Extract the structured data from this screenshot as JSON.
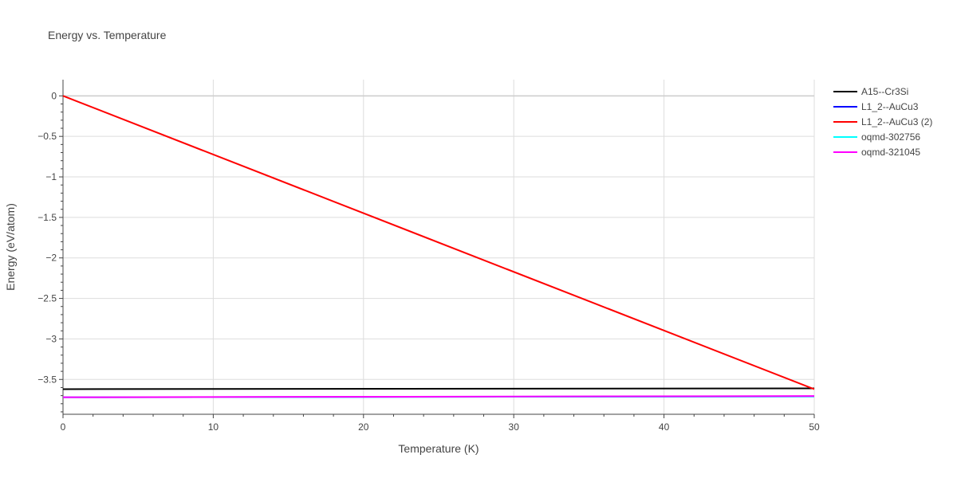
{
  "chart_data": {
    "type": "line",
    "title": "Energy vs. Temperature",
    "xlabel": "Temperature (K)",
    "ylabel": "Energy (eV/atom)",
    "xlim": [
      0,
      50
    ],
    "ylim": [
      -3.93,
      0.2
    ],
    "xticks": [
      0,
      10,
      20,
      30,
      40,
      50
    ],
    "xtick_labels": [
      "0",
      "10",
      "20",
      "30",
      "40",
      "50"
    ],
    "yticks": [
      0,
      -0.5,
      -1,
      -1.5,
      -2,
      -2.5,
      -3,
      -3.5
    ],
    "ytick_labels": [
      "0",
      "−0.5",
      "−1",
      "−1.5",
      "−2",
      "−2.5",
      "−3",
      "−3.5"
    ],
    "grid": true,
    "legend_position": "right",
    "series": [
      {
        "name": "A15--Cr3Si",
        "color": "#000000",
        "x": [
          0,
          50
        ],
        "y": [
          -3.62,
          -3.61
        ]
      },
      {
        "name": "L1_2--AuCu3",
        "color": "#0000ff",
        "x": [
          0,
          50
        ],
        "y": [
          -3.72,
          -3.71
        ]
      },
      {
        "name": "L1_2--AuCu3 (2)",
        "color": "#ff0000",
        "x": [
          0,
          50
        ],
        "y": [
          0,
          -3.62
        ]
      },
      {
        "name": "oqmd-302756",
        "color": "#00ffff",
        "x": [
          0,
          50
        ],
        "y": [
          -3.72,
          -3.71
        ]
      },
      {
        "name": "oqmd-321045",
        "color": "#ff00ff",
        "x": [
          0,
          50
        ],
        "y": [
          -3.72,
          -3.705
        ]
      }
    ]
  }
}
